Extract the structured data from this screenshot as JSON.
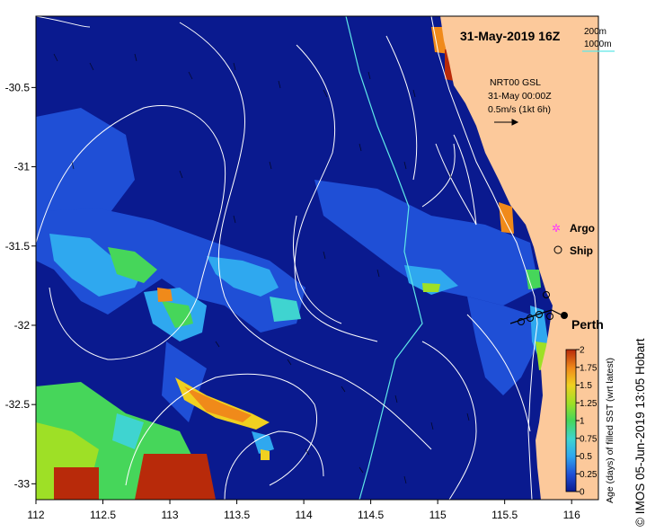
{
  "map": {
    "title": "31-May-2019 16Z",
    "lon_ticks": [
      "112",
      "112.5",
      "113",
      "113.5",
      "114",
      "114.5",
      "115",
      "115.5",
      "116"
    ],
    "lat_ticks": [
      "-30.5",
      "-31",
      "-31.5",
      "-32",
      "-32.5",
      "-33"
    ],
    "lon_range": [
      112,
      116.2
    ],
    "lat_range": [
      -30.05,
      -33.1
    ],
    "depth_legend": {
      "contour_200": "200m",
      "contour_1000": "1000m",
      "color_200": "#ffffff",
      "color_1000": "#5fe8e8"
    },
    "current_legend": {
      "line1": "NRT00 GSL",
      "line2": "31-May 00:00Z",
      "line3": "0.5m/s (1kt 6h)"
    },
    "symbols": {
      "argo": "Argo",
      "ship": "Ship",
      "argo_color": "#ff33ff"
    },
    "places": {
      "perth": "Perth"
    },
    "colorbar": {
      "label": "Age (days) of filled SST (wrt latest)",
      "ticks": [
        "2",
        "1.75",
        "1.5",
        "1.25",
        "1",
        "0.75",
        "0.5",
        "0.25",
        "0"
      ],
      "colors": [
        "#0a1a8f",
        "#1f4fd6",
        "#2fa8ef",
        "#3fd4d0",
        "#46d65a",
        "#9ee026",
        "#f0d020",
        "#f08a1a",
        "#b82a0a"
      ]
    },
    "credit": "© IMOS 05-Jun-2019 13:05 Hobart",
    "colors": {
      "ocean": "#0a1a8f",
      "land": "#fcc99b",
      "frame": "#000000"
    }
  }
}
